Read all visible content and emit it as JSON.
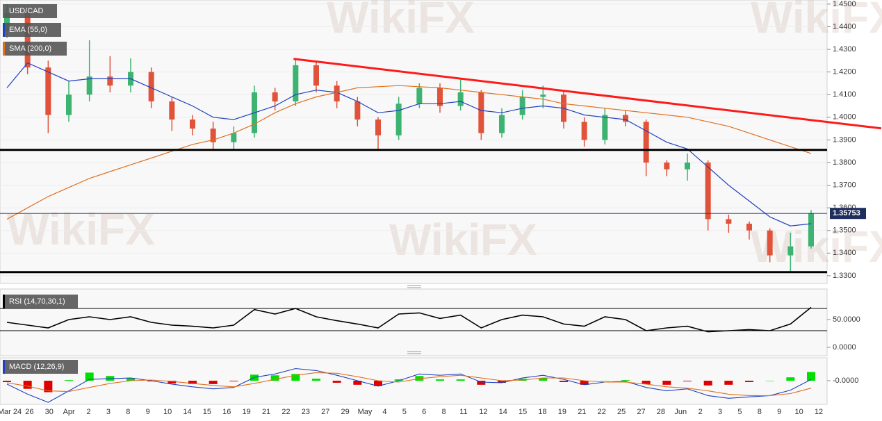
{
  "watermark": "WikiFX",
  "chart_data": [
    {
      "type": "candlestick",
      "ylim": [
        1.3266,
        1.4518
      ],
      "yticks": [
        {
          "value": 1.45,
          "label": "1.4500"
        },
        {
          "value": 1.44,
          "label": "1.4400"
        },
        {
          "value": 1.43,
          "label": "1.4300"
        },
        {
          "value": 1.42,
          "label": "1.4200"
        },
        {
          "value": 1.41,
          "label": "1.4100"
        },
        {
          "value": 1.4,
          "label": "1.4000"
        },
        {
          "value": 1.39,
          "label": "1.3900"
        },
        {
          "value": 1.38,
          "label": "1.3800"
        },
        {
          "value": 1.37,
          "label": "1.3700"
        },
        {
          "value": 1.36,
          "label": "1.3600"
        },
        {
          "value": 1.35,
          "label": "1.3500"
        },
        {
          "value": 1.34,
          "label": "1.3400"
        },
        {
          "value": 1.33,
          "label": "1.3300"
        }
      ],
      "grid": true,
      "last_price": 1.35753,
      "last_price_color": "#1e2e5e",
      "up_color": "#3cb371",
      "down_color": "#e0533a",
      "series": [
        {
          "name": "USD/CAD",
          "open": [
            1.438,
            1.446,
            1.422,
            1.401,
            1.41,
            1.418,
            1.414,
            1.42,
            1.407,
            1.399,
            1.395,
            1.389,
            1.393,
            1.411,
            1.407,
            1.423,
            1.414,
            1.407,
            1.399,
            1.392,
            1.406,
            1.413,
            1.405,
            1.411,
            1.393,
            1.401,
            1.409,
            1.41,
            1.398,
            1.39,
            1.401,
            1.398,
            1.38,
            1.377,
            1.38,
            1.355,
            1.353,
            1.35,
            1.339,
            1.343
          ],
          "high": [
            1.45,
            1.448,
            1.425,
            1.416,
            1.434,
            1.427,
            1.426,
            1.422,
            1.409,
            1.401,
            1.398,
            1.396,
            1.414,
            1.413,
            1.426,
            1.425,
            1.416,
            1.409,
            1.4,
            1.409,
            1.415,
            1.415,
            1.417,
            1.412,
            1.404,
            1.412,
            1.414,
            1.412,
            1.4,
            1.404,
            1.403,
            1.399,
            1.381,
            1.384,
            1.381,
            1.357,
            1.354,
            1.351,
            1.349,
            1.359
          ],
          "low": [
            1.435,
            1.419,
            1.393,
            1.398,
            1.407,
            1.411,
            1.411,
            1.404,
            1.394,
            1.392,
            1.386,
            1.386,
            1.391,
            1.403,
            1.405,
            1.411,
            1.404,
            1.396,
            1.386,
            1.39,
            1.404,
            1.402,
            1.403,
            1.39,
            1.391,
            1.399,
            1.404,
            1.395,
            1.387,
            1.388,
            1.396,
            1.374,
            1.374,
            1.372,
            1.35,
            1.349,
            1.346,
            1.336,
            1.332,
            1.342
          ],
          "close": [
            1.446,
            1.422,
            1.401,
            1.41,
            1.418,
            1.414,
            1.42,
            1.407,
            1.399,
            1.395,
            1.389,
            1.393,
            1.411,
            1.407,
            1.423,
            1.414,
            1.407,
            1.399,
            1.392,
            1.406,
            1.413,
            1.405,
            1.411,
            1.393,
            1.401,
            1.409,
            1.41,
            1.398,
            1.39,
            1.401,
            1.398,
            1.38,
            1.377,
            1.38,
            1.355,
            1.353,
            1.35,
            1.339,
            1.343,
            1.35753
          ]
        },
        {
          "name": "EMA (55,0)",
          "color": "#2040c0",
          "values": [
            1.413,
            1.424,
            1.42,
            1.416,
            1.417,
            1.417,
            1.417,
            1.413,
            1.409,
            1.405,
            1.4,
            1.399,
            1.402,
            1.405,
            1.41,
            1.412,
            1.411,
            1.407,
            1.402,
            1.403,
            1.406,
            1.406,
            1.407,
            1.403,
            1.402,
            1.404,
            1.405,
            1.404,
            1.401,
            1.4,
            1.399,
            1.394,
            1.389,
            1.386,
            1.378,
            1.37,
            1.363,
            1.356,
            1.352,
            1.353
          ]
        },
        {
          "name": "SMA (200,0)",
          "color": "#e07020",
          "values": [
            1.355,
            1.36,
            1.365,
            1.369,
            1.373,
            1.376,
            1.379,
            1.382,
            1.385,
            1.388,
            1.39,
            1.393,
            1.397,
            1.402,
            1.406,
            1.409,
            1.411,
            1.413,
            1.4135,
            1.414,
            1.4135,
            1.413,
            1.412,
            1.411,
            1.41,
            1.409,
            1.408,
            1.406,
            1.405,
            1.404,
            1.403,
            1.402,
            1.401,
            1.4,
            1.398,
            1.396,
            1.393,
            1.39,
            1.387,
            1.384
          ]
        }
      ],
      "trendline": {
        "start": [
          13.9,
          1.4258
        ],
        "end": [
          42.4,
          1.3951
        ],
        "color": "#ff1a1a"
      },
      "support_levels": [
        1.3856,
        1.3316
      ],
      "support_color": "#000000"
    },
    {
      "type": "line",
      "ylim": [
        -15,
        105
      ],
      "yticks": [
        {
          "value": 50,
          "label": "50.0000"
        },
        {
          "value": 0,
          "label": "0.0000"
        }
      ],
      "levels": [
        70,
        30
      ],
      "series": [
        {
          "name": "RSI (14,70,30,1)",
          "color": "#000000",
          "values": [
            45,
            40,
            35,
            50,
            55,
            50,
            55,
            45,
            40,
            38,
            35,
            40,
            68,
            60,
            70,
            55,
            48,
            42,
            35,
            60,
            62,
            52,
            58,
            35,
            50,
            58,
            55,
            42,
            38,
            55,
            50,
            30,
            35,
            38,
            28,
            30,
            32,
            30,
            42,
            72
          ]
        }
      ]
    },
    {
      "type": "combo",
      "ylim": [
        -0.0035,
        0.0034
      ],
      "yticks": [
        {
          "value": 0,
          "label": "-0.0000"
        }
      ],
      "series": [
        {
          "name": "MACD (12,26,9)",
          "positive_color": "#00e000",
          "negative_color": "#e00000",
          "values": [
            -0.0002,
            -0.0012,
            -0.0017,
            0.0001,
            0.0012,
            0.0007,
            0.0004,
            -0.0001,
            -0.0004,
            -0.0005,
            -0.0005,
            -0.0001,
            0.0009,
            0.0008,
            0.001,
            0.0003,
            -0.0003,
            -0.0006,
            -0.0008,
            0.0002,
            0.0007,
            0.0002,
            0.0002,
            -0.0006,
            -0.0003,
            0.0003,
            0.0004,
            -0.0002,
            -0.0006,
            0,
            0.0001,
            -0.0005,
            -0.0006,
            -0.0001,
            -0.0007,
            -0.0006,
            -0.0002,
            0,
            0.0005,
            0.0013
          ]
        }
      ],
      "macd_line": {
        "color": "#2040c0",
        "values": [
          -0.0005,
          -0.002,
          -0.0032,
          -0.0015,
          0.0002,
          0.0003,
          0.0004,
          0,
          -0.0005,
          -0.0009,
          -0.0012,
          -0.001,
          0.0005,
          0.001,
          0.0018,
          0.0015,
          0.0008,
          0,
          -0.0008,
          0,
          0.001,
          0.0008,
          0.001,
          -0.0002,
          -0.0003,
          0.0004,
          0.0008,
          0.0002,
          -0.0006,
          -0.0002,
          -0.0001,
          -0.001,
          -0.0015,
          -0.0012,
          -0.0022,
          -0.0026,
          -0.0024,
          -0.0022,
          -0.0014,
          0.0002
        ]
      },
      "signal_line": {
        "color": "#e07020",
        "values": [
          -0.0003,
          -0.0008,
          -0.0015,
          -0.0016,
          -0.001,
          -0.0004,
          0,
          0.0001,
          -0.0001,
          -0.0004,
          -0.0007,
          -0.0009,
          -0.0004,
          0.0002,
          0.0008,
          0.0012,
          0.0011,
          0.0006,
          0,
          -0.0002,
          0.0003,
          0.0006,
          0.0008,
          0.0004,
          0,
          0.0001,
          0.0004,
          0.0004,
          0,
          -0.0002,
          -0.0002,
          -0.0005,
          -0.0009,
          -0.0011,
          -0.0015,
          -0.002,
          -0.0022,
          -0.0022,
          -0.0019,
          -0.0011
        ]
      },
      "xtick_labels": [
        "Mar 24",
        "26",
        "30",
        "Apr",
        "2",
        "3",
        "8",
        "9",
        "10",
        "14",
        "15",
        "16",
        "19",
        "21",
        "22",
        "23",
        "27",
        "29",
        "May",
        "4",
        "5",
        "6",
        "8",
        "11",
        "12",
        "14",
        "15",
        "18",
        "19",
        "21",
        "22",
        "25",
        "27",
        "28",
        "Jun",
        "2",
        "3",
        "5",
        "8",
        "9",
        "10",
        "12"
      ]
    }
  ]
}
